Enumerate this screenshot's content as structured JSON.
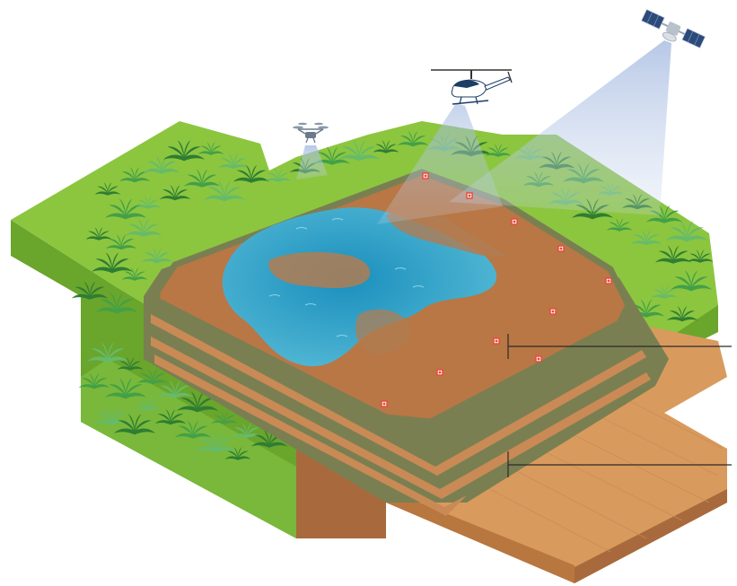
{
  "scene": {
    "colors": {
      "jungle_top": "#8cc63f",
      "jungle_side": "#6aa52c",
      "tree_dark": "#2e7d32",
      "tree_mid": "#43a047",
      "tree_light": "#66bb6a",
      "pit_floor": "#b87745",
      "pit_rim": "#c98a55",
      "bench": "#7a7f52",
      "soil_side": "#a86a3c",
      "soil_dark": "#8a5530",
      "ground": "#d99a5e",
      "water_deep": "#1f8fb8",
      "water_light": "#4fb6d6",
      "beam": "#c5d4ec",
      "sensor": "#e74c3c",
      "leader_line": "#2b2b2b"
    },
    "vehicles": [
      "drone-icon",
      "helicopter-icon",
      "satellite-icon"
    ],
    "sensor_count": 10,
    "leader_lines": 2
  }
}
